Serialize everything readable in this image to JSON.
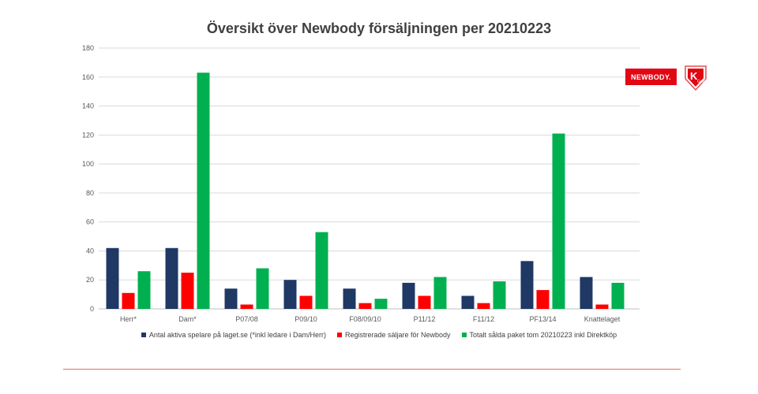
{
  "chart_data": {
    "type": "bar",
    "title": "Översikt över Newbody försäljningen per 20210223",
    "categories": [
      "Herr*",
      "Dam*",
      "P07/08",
      "P09/10",
      "F08/09/10",
      "P11/12",
      "F11/12",
      "PF13/14",
      "Knattelaget"
    ],
    "series": [
      {
        "name": "Antal aktiva spelare på laget.se (*inkl ledare i Dam/Herr)",
        "color": "#1f3864",
        "values": [
          42,
          42,
          14,
          20,
          14,
          18,
          9,
          33,
          22
        ]
      },
      {
        "name": "Registrerade säljare för Newbody",
        "color": "#ff0000",
        "values": [
          11,
          25,
          3,
          9,
          4,
          9,
          4,
          13,
          3
        ]
      },
      {
        "name": "Totalt sålda paket tom 20210223 inkl Direktköp",
        "color": "#00b050",
        "values": [
          26,
          163,
          28,
          53,
          7,
          22,
          19,
          121,
          18
        ]
      }
    ],
    "ylim": [
      0,
      180
    ],
    "yticks": [
      0,
      20,
      40,
      60,
      80,
      100,
      120,
      140,
      160,
      180
    ],
    "grid": true,
    "legend_position": "bottom"
  },
  "logos": {
    "newbody": "NEWBODY.",
    "club": "K GoIF"
  }
}
